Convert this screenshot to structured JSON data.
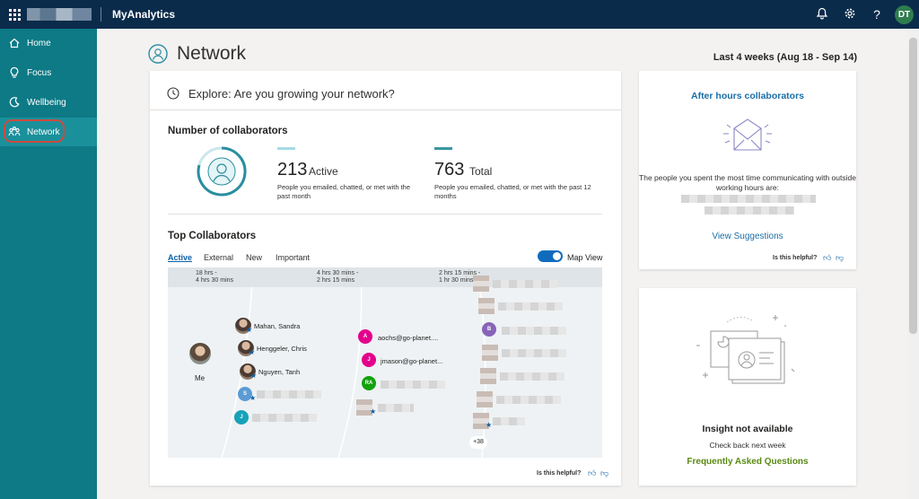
{
  "app": {
    "title": "MyAnalytics"
  },
  "topbar": {
    "avatar_initials": "DT",
    "icons": [
      "waffle-icon",
      "bell-icon",
      "gear-icon",
      "help-icon"
    ]
  },
  "sidebar": {
    "items": [
      {
        "label": "Home",
        "icon": "home-icon"
      },
      {
        "label": "Focus",
        "icon": "lightbulb-icon"
      },
      {
        "label": "Wellbeing",
        "icon": "moon-icon"
      },
      {
        "label": "Network",
        "icon": "network-icon",
        "active": true
      }
    ]
  },
  "header": {
    "title": "Network",
    "date_range": "Last 4 weeks (Aug 18 - Sep 14)"
  },
  "main": {
    "explore": "Explore: Are you growing your network?",
    "collab_title": "Number of collaborators",
    "active": {
      "value": "213",
      "label": "Active",
      "desc": "People you emailed, chatted, or met with the past month",
      "color": "#a6dbe4"
    },
    "total": {
      "value": "763",
      "label": "Total",
      "desc": "People you emailed, chatted, or met with the past 12 months",
      "color": "#3a96a3"
    },
    "top_title": "Top Collaborators",
    "tabs": [
      "Active",
      "External",
      "New",
      "Important"
    ],
    "map_view_label": "Map View",
    "bands": [
      "18 hrs -",
      "4 hrs 30 mins",
      "4 hrs 30 mins -",
      "2 hrs 15 mins",
      "2 hrs 15 mins -",
      "1 hr 30 mins"
    ],
    "me_label": "Me",
    "people": [
      {
        "name": "Mahan, Sandra"
      },
      {
        "name": "Henggeler, Chris"
      },
      {
        "name": "Nguyen, Tanh"
      },
      {
        "initial": "S",
        "color": "#5b9bd5"
      },
      {
        "initial": "J",
        "color": "#17a2b8"
      },
      {
        "initial": "A",
        "name": "aochs@go-planet....",
        "color": "#e3008c"
      },
      {
        "initial": "J",
        "name": "jmason@go-planet...",
        "color": "#e3008c"
      },
      {
        "initial": "RA",
        "color": "#13a10e"
      },
      {
        "initial": "B",
        "color": "#8764b8"
      }
    ],
    "more_count": "+38",
    "helpful": "Is this helpful?"
  },
  "after_hours": {
    "title": "After hours collaborators",
    "text": "The people you spent the most time communicating with outside working hours are:",
    "link": "View Suggestions",
    "helpful": "Is this helpful?"
  },
  "insight": {
    "title": "Insight not available",
    "text": "Check back next week",
    "link": "Frequently Asked Questions"
  }
}
